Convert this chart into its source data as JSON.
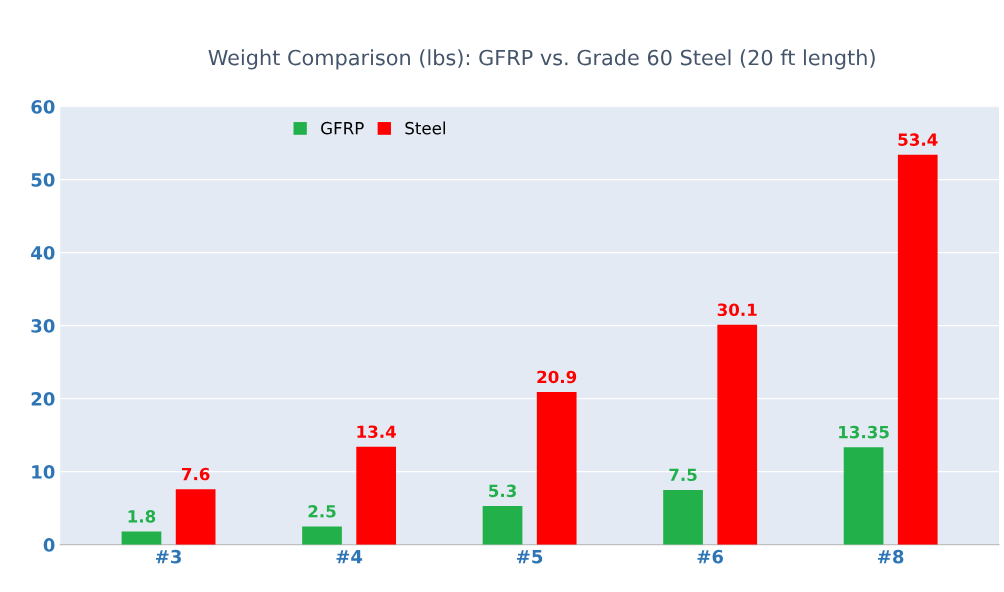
{
  "chart_data": {
    "type": "bar",
    "title": "Weight Comparison (lbs): GFRP vs. Grade 60 Steel (20 ft length)",
    "categories": [
      "#3",
      "#4",
      "#5",
      "#6",
      "#8"
    ],
    "series": [
      {
        "name": "GFRP",
        "color": "#22b04b",
        "values": [
          1.8,
          2.5,
          5.3,
          7.5,
          13.35
        ]
      },
      {
        "name": "Steel",
        "color": "#ff0000",
        "values": [
          7.6,
          13.4,
          20.9,
          30.1,
          53.4
        ]
      }
    ],
    "ylim": [
      0,
      60
    ],
    "yticks": [
      0,
      10,
      20,
      30,
      40,
      50,
      60
    ],
    "grid": "y",
    "legend": "top",
    "data_labels": true
  }
}
